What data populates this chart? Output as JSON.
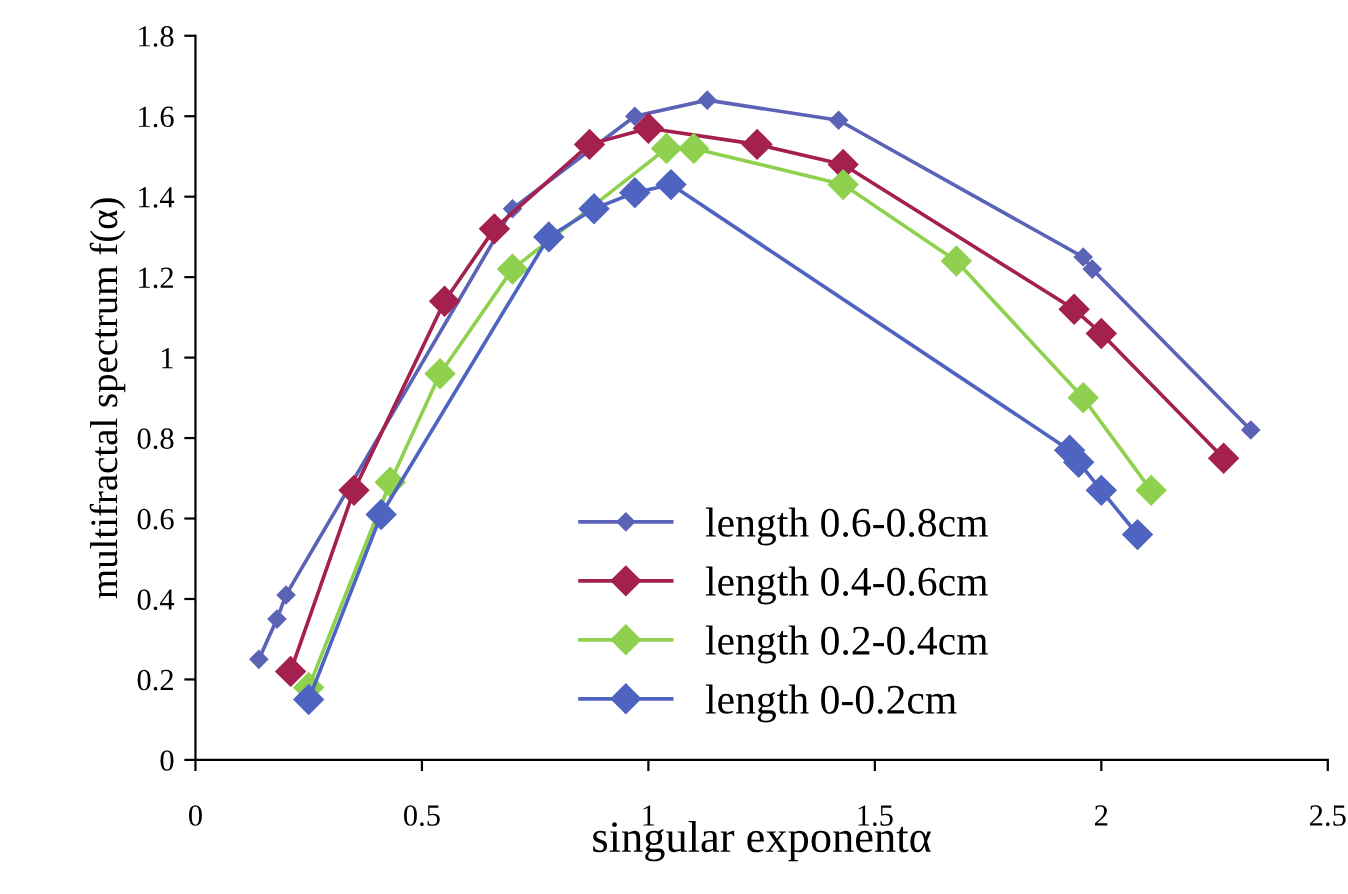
{
  "chart_data": {
    "type": "line",
    "xlabel": "singular exponentα",
    "ylabel": "multifractal spectrum f(α)",
    "xlim": [
      0,
      2.5
    ],
    "xticks": [
      0,
      0.5,
      1,
      1.5,
      2,
      2.5
    ],
    "ylim": [
      0,
      1.8
    ],
    "yticks": [
      0,
      0.2,
      0.4,
      0.6,
      0.8,
      1,
      1.2,
      1.4,
      1.6,
      1.8
    ],
    "grid": false,
    "legend": "bottom",
    "marker": "diamond",
    "line_style": "solid",
    "series": [
      {
        "name": "length 0.6-0.8cm",
        "color": "#5a63b5",
        "x": [
          0.14,
          0.18,
          0.2,
          0.7,
          0.97,
          1.13,
          1.42,
          1.96,
          1.98,
          2.33
        ],
        "values": [
          0.25,
          0.35,
          0.41,
          1.37,
          1.6,
          1.64,
          1.59,
          1.25,
          1.22,
          0.82
        ]
      },
      {
        "name": "length 0.4-0.6cm",
        "color": "#a3204f",
        "x": [
          0.21,
          0.35,
          0.55,
          0.66,
          0.87,
          1.0,
          1.24,
          1.43,
          1.94,
          2.0,
          2.27
        ],
        "values": [
          0.22,
          0.67,
          1.14,
          1.32,
          1.53,
          1.57,
          1.53,
          1.48,
          1.12,
          1.06,
          0.75
        ]
      },
      {
        "name": "length 0.2-0.4cm",
        "color": "#8fd14f",
        "x": [
          0.25,
          0.43,
          0.54,
          0.7,
          1.04,
          1.1,
          1.43,
          1.68,
          1.96,
          2.11
        ],
        "values": [
          0.18,
          0.69,
          0.96,
          1.22,
          1.52,
          1.52,
          1.43,
          1.24,
          0.9,
          0.67
        ]
      },
      {
        "name": "length 0-0.2cm",
        "color": "#4f63c0",
        "x": [
          0.25,
          0.41,
          0.78,
          0.88,
          0.97,
          1.05,
          1.93,
          1.95,
          2.0,
          2.08
        ],
        "values": [
          0.15,
          0.61,
          1.3,
          1.37,
          1.41,
          1.43,
          0.77,
          0.74,
          0.67,
          0.56
        ]
      }
    ]
  }
}
